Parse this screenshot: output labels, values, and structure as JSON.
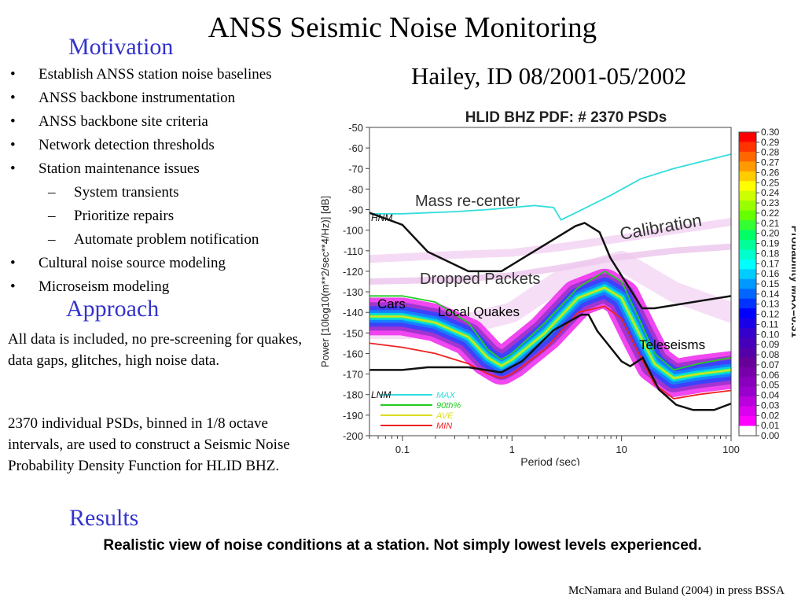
{
  "slide": {
    "title": "ANSS Seismic Noise Monitoring",
    "motivation_heading": "Motivation",
    "subtitle": "Hailey, ID 08/2001-05/2002",
    "bullets": [
      {
        "marker": "•",
        "text": "Establish ANSS station noise baselines",
        "level": 1
      },
      {
        "marker": "•",
        "text": "ANSS backbone instrumentation",
        "level": 1
      },
      {
        "marker": "•",
        "text": "ANSS backbone site criteria",
        "level": 1
      },
      {
        "marker": "•",
        "text": "Network detection thresholds",
        "level": 1
      },
      {
        "marker": "•",
        "text": "Station maintenance issues",
        "level": 1
      },
      {
        "marker": "–",
        "text": "System transients",
        "level": 2
      },
      {
        "marker": "–",
        "text": "Prioritize repairs",
        "level": 2
      },
      {
        "marker": "–",
        "text": "Automate problem notification",
        "level": 2
      },
      {
        "marker": "•",
        "text": "Cultural noise source modeling",
        "level": 1
      },
      {
        "marker": "•",
        "text": "Microseism modeling",
        "level": 1
      }
    ],
    "approach_heading": "Approach",
    "approach_text_1": "All data is included, no pre-screening for quakes, data gaps, glitches, high noise data.",
    "approach_text_2": "2370 individual PSDs, binned in 1/8 octave intervals, are used to construct a Seismic Noise Probability Density Function for HLID BHZ.",
    "results_heading": "Results",
    "results_text": "Realistic view of noise conditions at a station. Not simply lowest levels experienced.",
    "citation": "McNamara and Buland (2004) in press BSSA",
    "heading_color": "#3333cc"
  },
  "chart_data": {
    "type": "heatmap",
    "title": "HLID BHZ  PDF: # 2370 PSDs",
    "xlabel": "Period (sec)",
    "ylabel": "Power [10log10(m**2/sec**4/Hz)] [dB]",
    "x_scale": "log",
    "xlim": [
      0.05,
      100
    ],
    "ylim": [
      -200,
      -50
    ],
    "x_ticks": [
      "0.1",
      "1",
      "10",
      "100"
    ],
    "x_tick_values": [
      0.1,
      1,
      10,
      100
    ],
    "y_ticks": [
      "-50",
      "-60",
      "-70",
      "-80",
      "-90",
      "-100",
      "-110",
      "-120",
      "-130",
      "-140",
      "-150",
      "-160",
      "-170",
      "-180",
      "-190",
      "-200"
    ],
    "colorbar": {
      "label": "Probability MAX=0.31",
      "ticks": [
        "0.30",
        "0.29",
        "0.28",
        "0.27",
        "0.26",
        "0.25",
        "0.24",
        "0.23",
        "0.22",
        "0.21",
        "0.20",
        "0.19",
        "0.18",
        "0.17",
        "0.16",
        "0.15",
        "0.14",
        "0.13",
        "0.12",
        "0.11",
        "0.10",
        "0.09",
        "0.08",
        "0.07",
        "0.06",
        "0.05",
        "0.04",
        "0.03",
        "0.02",
        "0.01",
        "0.00"
      ],
      "colors": [
        "#ff0000",
        "#ff3300",
        "#ff6600",
        "#ff9900",
        "#ffcc00",
        "#ffff00",
        "#ccff00",
        "#99ff00",
        "#66ff00",
        "#33ff33",
        "#00ff66",
        "#00ff99",
        "#00ffcc",
        "#00ffff",
        "#00ccff",
        "#0099ff",
        "#0066ff",
        "#0033ff",
        "#0000ff",
        "#1a00e6",
        "#3300cc",
        "#4400bb",
        "#5500aa",
        "#660099",
        "#7700aa",
        "#8800bb",
        "#9900cc",
        "#bb00dd",
        "#dd00ee",
        "#ff00ff",
        "#ffffff"
      ]
    },
    "series": [
      {
        "name": "MAX",
        "color": "#33dddd",
        "x": [
          0.05,
          0.1,
          0.3,
          0.6,
          1.0,
          1.6,
          2.4,
          2.8,
          4,
          8,
          15,
          30,
          60,
          100
        ],
        "y": [
          -92,
          -92,
          -91,
          -90,
          -89,
          -88,
          -89,
          -95,
          -91,
          -83,
          -75,
          -70,
          -66,
          -63
        ]
      },
      {
        "name": "90th%",
        "color": "#22cc22",
        "x": [
          0.05,
          0.1,
          0.2,
          0.4,
          0.6,
          0.8,
          1.0,
          2,
          4,
          7,
          10,
          15,
          20,
          30,
          50,
          100
        ],
        "y": [
          -132,
          -132,
          -135,
          -145,
          -158,
          -163,
          -160,
          -145,
          -128,
          -120,
          -125,
          -145,
          -160,
          -168,
          -165,
          -162
        ]
      },
      {
        "name": "AVE",
        "color": "#dddd22",
        "x": [
          0.05,
          0.1,
          0.2,
          0.4,
          0.6,
          0.8,
          1.0,
          2,
          4,
          7,
          10,
          15,
          20,
          30,
          50,
          100
        ],
        "y": [
          -142,
          -142,
          -145,
          -152,
          -162,
          -166,
          -163,
          -150,
          -133,
          -128,
          -133,
          -152,
          -165,
          -172,
          -170,
          -168
        ]
      },
      {
        "name": "MIN",
        "color": "#ee2222",
        "x": [
          0.05,
          0.1,
          0.2,
          0.4,
          0.6,
          0.8,
          1.0,
          2,
          4,
          7,
          10,
          15,
          20,
          30,
          50,
          100
        ],
        "y": [
          -155,
          -157,
          -160,
          -165,
          -170,
          -172,
          -170,
          -158,
          -140,
          -137,
          -143,
          -162,
          -175,
          -182,
          -180,
          -178
        ]
      }
    ],
    "reference_lines": [
      {
        "name": "HNM",
        "x": [
          0.05,
          0.1,
          0.17,
          0.4,
          0.8,
          3.8,
          4.6,
          6.3,
          7.9,
          15.4,
          20,
          100
        ],
        "y": [
          -91.5,
          -97.4,
          -110.5,
          -120,
          -120,
          -98,
          -96.5,
          -101,
          -113.5,
          -138,
          -138,
          -132
        ]
      },
      {
        "name": "LNM",
        "x": [
          0.05,
          0.1,
          0.17,
          0.4,
          0.8,
          1.24,
          2.4,
          4.3,
          5,
          6,
          10,
          12,
          15.6,
          21.9,
          31.6,
          45,
          70,
          100
        ],
        "y": [
          -168,
          -168,
          -166.7,
          -166.7,
          -169.2,
          -163.7,
          -148.6,
          -141.1,
          -141.1,
          -149,
          -163.8,
          -166.2,
          -162.1,
          -177.5,
          -185,
          -187.5,
          -187.5,
          -184.4
        ]
      }
    ],
    "annotations": [
      "Mass re-center",
      "Calibration",
      "Dropped Packets",
      "Cars",
      "Local Quakes",
      "Teleseisms",
      "HNM",
      "LNM"
    ]
  }
}
